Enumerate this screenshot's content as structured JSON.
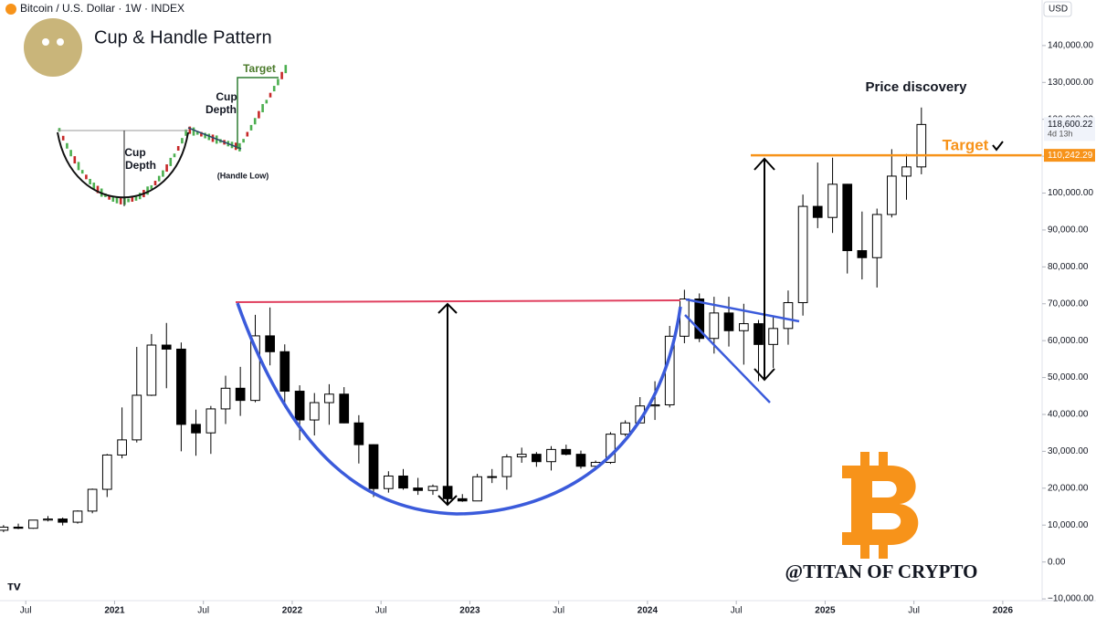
{
  "chart_data": {
    "type": "candlestick",
    "title": "Bitcoin / U.S. Dollar · 1W · INDEX",
    "currency": "USD",
    "up_color": "#ffffff",
    "down_color": "#000000",
    "outline_color": "#000000",
    "x": [
      2020.375,
      2020.458,
      2020.542,
      2020.625,
      2020.708,
      2020.792,
      2020.875,
      2020.958,
      2021.042,
      2021.125,
      2021.208,
      2021.292,
      2021.375,
      2021.458,
      2021.542,
      2021.625,
      2021.708,
      2021.792,
      2021.875,
      2021.958,
      2022.042,
      2022.125,
      2022.208,
      2022.292,
      2022.375,
      2022.458,
      2022.542,
      2022.625,
      2022.708,
      2022.792,
      2022.875,
      2022.958,
      2023.042,
      2023.125,
      2023.208,
      2023.292,
      2023.375,
      2023.458,
      2023.542,
      2023.625,
      2023.708,
      2023.792,
      2023.875,
      2023.958,
      2024.042,
      2024.125,
      2024.208,
      2024.292,
      2024.375,
      2024.458,
      2024.542,
      2024.625,
      2024.708,
      2024.792,
      2024.875,
      2024.958,
      2025.042,
      2025.125,
      2025.208,
      2025.292,
      2025.375,
      2025.458,
      2025.542
    ],
    "ohlc": [
      [
        8600,
        10000,
        8100,
        9450
      ],
      [
        9450,
        10400,
        8900,
        9140
      ],
      [
        9140,
        11400,
        9000,
        11350
      ],
      [
        11350,
        12450,
        11000,
        11650
      ],
      [
        11650,
        12050,
        9900,
        10780
      ],
      [
        10780,
        14000,
        10400,
        13800
      ],
      [
        13800,
        19900,
        13200,
        19700
      ],
      [
        19700,
        29300,
        17600,
        29000
      ],
      [
        29000,
        41900,
        28100,
        33100
      ],
      [
        33100,
        58300,
        32400,
        45200
      ],
      [
        45200,
        61800,
        45000,
        58800
      ],
      [
        58800,
        64800,
        47100,
        57700
      ],
      [
        57700,
        59500,
        30000,
        37300
      ],
      [
        37300,
        41300,
        28800,
        35000
      ],
      [
        35000,
        42300,
        29300,
        41500
      ],
      [
        41500,
        50500,
        37400,
        47100
      ],
      [
        47100,
        52900,
        39600,
        43800
      ],
      [
        43800,
        67000,
        43300,
        61300
      ],
      [
        61300,
        69000,
        53300,
        57000
      ],
      [
        57000,
        59000,
        42000,
        46300
      ],
      [
        46300,
        47900,
        33000,
        38500
      ],
      [
        38500,
        45800,
        34300,
        43200
      ],
      [
        43200,
        48200,
        37200,
        45500
      ],
      [
        45500,
        47400,
        37600,
        37700
      ],
      [
        37700,
        39800,
        26700,
        31800
      ],
      [
        31800,
        31900,
        17600,
        19900
      ],
      [
        19900,
        24600,
        18800,
        23300
      ],
      [
        23300,
        25200,
        19600,
        20050
      ],
      [
        20050,
        22800,
        18200,
        19400
      ],
      [
        19400,
        21000,
        18200,
        20500
      ],
      [
        20500,
        21500,
        15500,
        17150
      ],
      [
        17150,
        18400,
        16300,
        16550
      ],
      [
        16550,
        23900,
        16500,
        23100
      ],
      [
        23100,
        25200,
        21400,
        23150
      ],
      [
        23150,
        29200,
        19600,
        28500
      ],
      [
        28500,
        31000,
        26900,
        29200
      ],
      [
        29200,
        29800,
        25800,
        27200
      ],
      [
        27200,
        31400,
        24800,
        30500
      ],
      [
        30500,
        31800,
        28900,
        29200
      ],
      [
        29200,
        30200,
        25300,
        25950
      ],
      [
        25950,
        27500,
        24900,
        27000
      ],
      [
        27000,
        35200,
        26600,
        34650
      ],
      [
        34650,
        38400,
        34100,
        37700
      ],
      [
        37700,
        44700,
        37600,
        42300
      ],
      [
        42300,
        49000,
        38500,
        42600
      ],
      [
        42600,
        64000,
        41900,
        61200
      ],
      [
        61200,
        73800,
        59300,
        71300
      ],
      [
        71300,
        72800,
        59600,
        60600
      ],
      [
        60600,
        71900,
        56500,
        67500
      ],
      [
        67500,
        71900,
        58400,
        62700
      ],
      [
        62700,
        70000,
        53500,
        64600
      ],
      [
        64600,
        65600,
        49000,
        58970
      ],
      [
        58970,
        66500,
        52600,
        63300
      ],
      [
        63300,
        73600,
        58900,
        70300
      ],
      [
        70300,
        99600,
        66800,
        96400
      ],
      [
        96400,
        108300,
        90500,
        93400
      ],
      [
        93400,
        109600,
        89200,
        102400
      ],
      [
        102400,
        102500,
        78200,
        84400
      ],
      [
        84400,
        95000,
        76600,
        82500
      ],
      [
        82500,
        95800,
        74400,
        94200
      ],
      [
        94200,
        111900,
        93400,
        104600
      ],
      [
        104600,
        110600,
        98200,
        107100
      ],
      [
        107100,
        123200,
        105100,
        118600
      ]
    ],
    "xlim": [
      2020.355,
      2026.345
    ],
    "xticks": [
      {
        "value": 2020.5,
        "label": "Jul"
      },
      2021,
      {
        "value": 2021.5,
        "label": "Jul"
      },
      2022,
      {
        "value": 2022.5,
        "label": "Jul"
      },
      2023,
      {
        "value": 2023.5,
        "label": "Jul"
      },
      2024,
      {
        "value": 2024.5,
        "label": "Jul"
      },
      2025,
      {
        "value": 2025.5,
        "label": "Jul"
      },
      2026
    ],
    "ylim": [
      -15185,
      152345
    ],
    "yticks": [
      {
        "value": 140000,
        "label": "140,000.00"
      },
      {
        "value": 130000,
        "label": "130,000.00"
      },
      {
        "value": 120000,
        "label": "120,000.00"
      },
      {
        "value": 110000,
        "label": "110,000.00"
      },
      {
        "value": 100000,
        "label": "100,000.00"
      },
      {
        "value": 90000,
        "label": "90,000.00"
      },
      {
        "value": 80000,
        "label": "80,000.00"
      },
      {
        "value": 70000,
        "label": "70,000.00"
      },
      {
        "value": 60000,
        "label": "60,000.00"
      },
      {
        "value": 50000,
        "label": "50,000.00"
      },
      {
        "value": 40000,
        "label": "40,000.00"
      },
      {
        "value": 30000,
        "label": "30,000.00"
      },
      {
        "value": 20000,
        "label": "20,000.00"
      },
      {
        "value": 10000,
        "label": "10,000.00"
      },
      {
        "value": 0,
        "label": "0.00"
      },
      {
        "value": -10000,
        "label": "−10,000.00"
      }
    ],
    "target_line": {
      "value": 110242.29,
      "label": "110,242.29",
      "color": "#f7931a"
    },
    "last_price": {
      "value": 118600.22,
      "label": "118,600.22",
      "countdown": "4d 13h"
    },
    "annotations": {
      "price_discovery": "Price discovery",
      "target": "Target",
      "watermark": "@TITAN OF CRYPTO"
    },
    "inset": {
      "title": "Cup & Handle Pattern",
      "cup_depth_1": [
        "Cup",
        "Depth"
      ],
      "cup_depth_2": [
        "Cup",
        "Depth"
      ],
      "target": "Target",
      "handle_low": "(Handle Low)"
    }
  }
}
